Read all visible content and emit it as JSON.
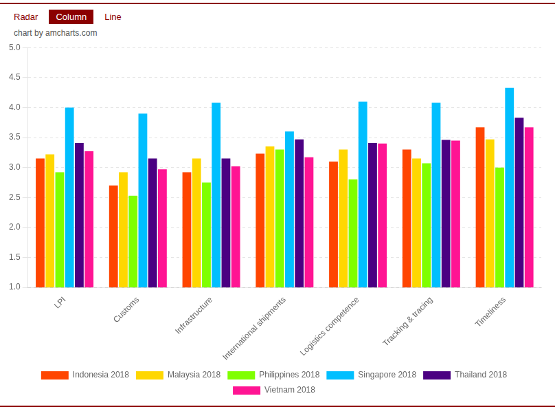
{
  "chart_data": {
    "type": "bar",
    "subtitle": "chart by amcharts.com",
    "annotations": [
      "Radar",
      "Column",
      "Line"
    ],
    "categories": [
      "LPI",
      "Customs",
      "Infrastructure",
      "International shipments",
      "Logistics competence",
      "Tracking & tracing",
      "Timeliness"
    ],
    "series": [
      {
        "name": "Indonesia 2018",
        "color": "#FF4500",
        "values": [
          3.15,
          2.7,
          2.92,
          3.23,
          3.1,
          3.3,
          3.67
        ]
      },
      {
        "name": "Malaysia 2018",
        "color": "#FFD700",
        "values": [
          3.22,
          2.92,
          3.15,
          3.35,
          3.3,
          3.15,
          3.47
        ]
      },
      {
        "name": "Philippines 2018",
        "color": "#7FFF00",
        "values": [
          2.92,
          2.53,
          2.75,
          3.3,
          2.8,
          3.07,
          3.0
        ]
      },
      {
        "name": "Singapore 2018",
        "color": "#00BFFF",
        "values": [
          4.0,
          3.9,
          4.08,
          3.6,
          4.1,
          4.08,
          4.33
        ]
      },
      {
        "name": "Thailand 2018",
        "color": "#4B0082",
        "values": [
          3.41,
          3.15,
          3.15,
          3.47,
          3.41,
          3.46,
          3.83
        ]
      },
      {
        "name": "Vietnam 2018",
        "color": "#FF1493",
        "values": [
          3.27,
          2.97,
          3.02,
          3.17,
          3.4,
          3.45,
          3.67
        ]
      }
    ],
    "ylim": [
      1.0,
      5.0
    ],
    "yticks": [
      {
        "value": 1,
        "label": "1.0"
      },
      1.5,
      {
        "value": 2,
        "label": "2.0"
      },
      2.5,
      {
        "value": 3,
        "label": "3.0"
      },
      3.5,
      {
        "value": 4,
        "label": "4.0"
      },
      4.5,
      {
        "value": 5,
        "label": "5.0"
      }
    ],
    "grid": true,
    "legend": "bottom"
  }
}
